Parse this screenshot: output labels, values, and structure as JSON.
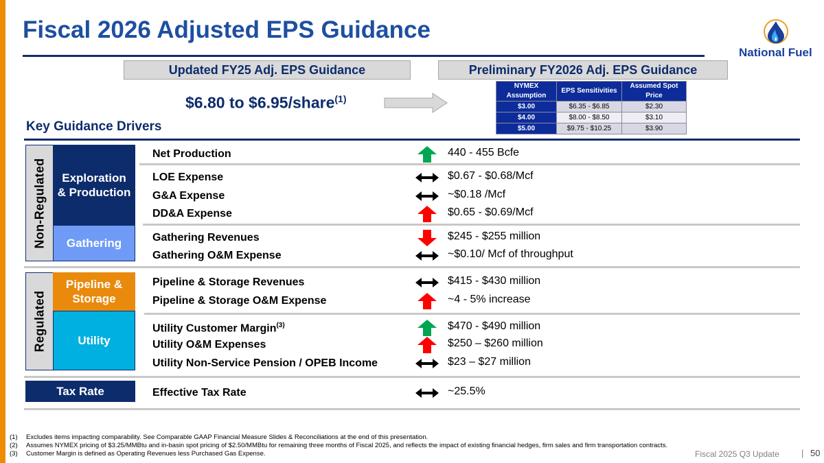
{
  "title": "Fiscal 2026 Adjusted EPS Guidance",
  "logo": {
    "text": "National Fuel",
    "registered": "®"
  },
  "headers": {
    "left": "Updated FY25 Adj. EPS Guidance",
    "right": "Preliminary FY2026 Adj. EPS Guidance"
  },
  "eps": {
    "range": "$6.80 to $6.95/share",
    "footnote_ref": "(1)"
  },
  "sensitivity_table": {
    "columns": [
      "NYMEX Assumption",
      "EPS Sensitivities",
      "Assumed Spot Price"
    ],
    "rows": [
      [
        "$3.00",
        "$6.35 - $6.85",
        "$2.30"
      ],
      [
        "$4.00",
        "$8.00 - $8.50",
        "$3.10"
      ],
      [
        "$5.00",
        "$9.75 - $10.25",
        "$3.90"
      ]
    ]
  },
  "key_drivers_title": "Key Guidance Drivers",
  "segments": {
    "non_regulated": "Non-Regulated",
    "regulated": "Regulated",
    "ep": "Exploration & Production",
    "gathering": "Gathering",
    "pipeline": "Pipeline & Storage",
    "utility": "Utility",
    "tax": "Tax Rate"
  },
  "colors": {
    "navy": "#0d2c6c",
    "gathering": "#6f9bf6",
    "pipeline": "#e98a0c",
    "utility": "#00b0e0",
    "up_green": "#00a651",
    "red": "#ff0000"
  },
  "drivers": [
    {
      "label": "Net Production",
      "value": "440 - 455 Bcfe",
      "trend": "up-green"
    },
    {
      "label": "LOE Expense",
      "value": "$0.67 - $0.68/Mcf",
      "trend": "flat"
    },
    {
      "label": "G&A Expense",
      "value": "~$0.18 /Mcf",
      "trend": "flat"
    },
    {
      "label": "DD&A Expense",
      "value": "$0.65 - $0.69/Mcf",
      "trend": "up-red"
    },
    {
      "label": "Gathering Revenues",
      "value": "$245 - $255 million",
      "trend": "down-red"
    },
    {
      "label": "Gathering O&M Expense",
      "value": "~$0.10/ Mcf of throughput",
      "trend": "flat"
    },
    {
      "label": "Pipeline & Storage Revenues",
      "value": "$415 - $430 million",
      "trend": "flat"
    },
    {
      "label": "Pipeline & Storage O&M Expense",
      "value": "~4 - 5% increase",
      "trend": "up-red"
    },
    {
      "label": "Utility Customer Margin",
      "sup": "(3)",
      "value": "$470 - $490 million",
      "trend": "up-green"
    },
    {
      "label": "Utility O&M Expenses",
      "value": "$250 – $260 million",
      "trend": "up-red"
    },
    {
      "label": "Utility Non-Service Pension / OPEB Income",
      "value": "$23 – $27 million",
      "trend": "flat"
    },
    {
      "label": "Effective Tax Rate",
      "value": "~25.5%",
      "trend": "flat"
    }
  ],
  "footnotes": [
    {
      "num": "(1)",
      "text": "Excludes items impacting comparability. See Comparable GAAP Financial Measure Slides & Reconciliations at the end of this presentation."
    },
    {
      "num": "(2)",
      "text": "Assumes NYMEX pricing of $3.25/MMBtu and in-basin spot pricing of $2.50/MMBtu for remaining three months of Fiscal 2025, and reflects the impact of existing financial hedges, firm sales and firm transportation contracts."
    },
    {
      "num": "(3)",
      "text": "Customer Margin is defined as Operating Revenues less Purchased Gas Expense."
    }
  ],
  "footer": {
    "label": "Fiscal 2025 Q3 Update",
    "page": "50"
  }
}
